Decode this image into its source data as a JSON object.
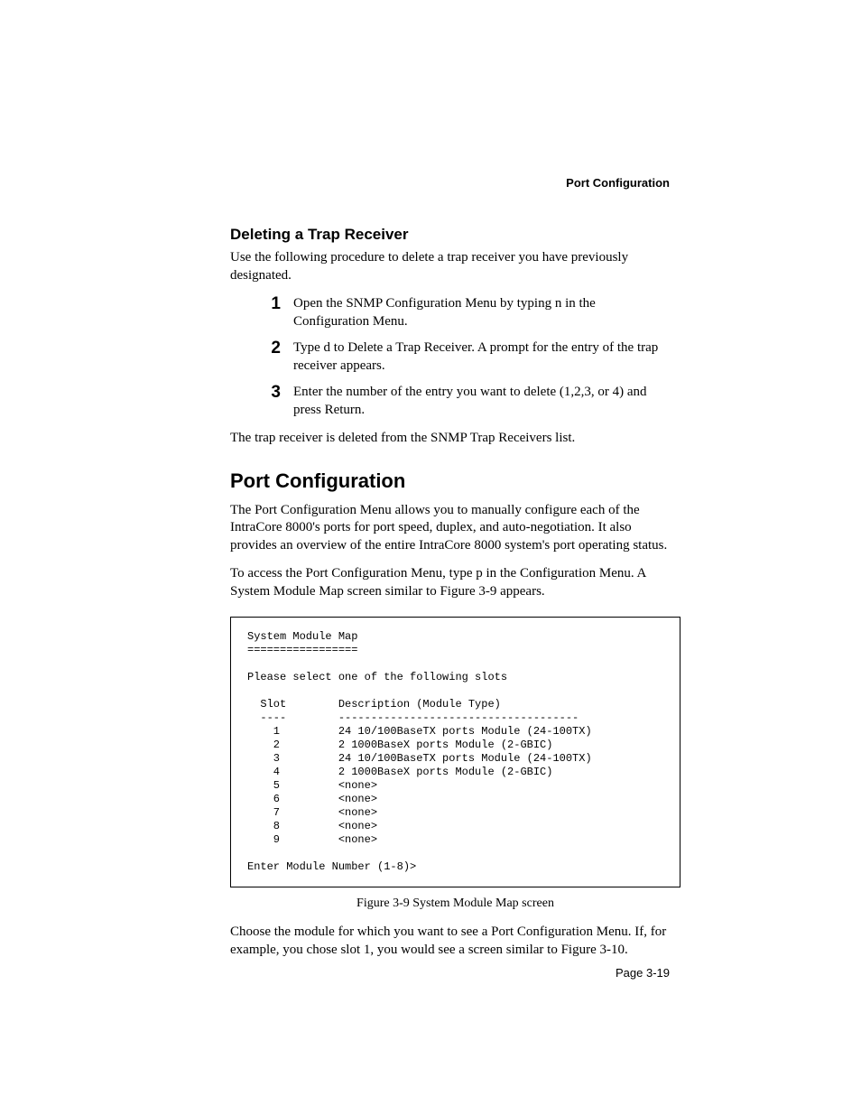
{
  "running_head": "Port Configuration",
  "section1": {
    "heading": "Deleting a Trap Receiver",
    "intro": "Use the following procedure to delete a trap receiver you have previously designated.",
    "steps": [
      {
        "n": "1",
        "text": "Open the SNMP Configuration Menu by typing n in the Configuration Menu."
      },
      {
        "n": "2",
        "text": "Type d to Delete a Trap Receiver. A prompt for the entry of the trap receiver appears."
      },
      {
        "n": "3",
        "text": "Enter the number of the entry you want to delete (1,2,3, or 4) and press Return."
      }
    ],
    "closing": "The trap receiver is deleted from the SNMP Trap Receivers list."
  },
  "section2": {
    "heading": "Port Configuration",
    "p1": "The Port Configuration Menu allows you to manually configure each of the IntraCore 8000's ports for port speed, duplex, and auto-negotiation. It also provides an overview of the entire IntraCore 8000 system's port operating status.",
    "p2": "To access the Port Configuration Menu, type p in the Configuration Menu. A System Module Map screen similar to Figure 3-9 appears.",
    "terminal": "System Module Map\n=================\n\nPlease select one of the following slots\n\n  Slot        Description (Module Type)\n  ----        -------------------------------------\n    1         24 10/100BaseTX ports Module (24-100TX)\n    2         2 1000BaseX ports Module (2-GBIC)\n    3         24 10/100BaseTX ports Module (24-100TX)\n    4         2 1000BaseX ports Module (2-GBIC)\n    5         <none>\n    6         <none>\n    7         <none>\n    8         <none>\n    9         <none>\n\nEnter Module Number (1-8)>",
    "fig_caption": "Figure 3-9   System Module Map screen",
    "p3": "Choose the module for which you want to see a Port Configuration Menu. If, for example, you chose slot 1, you would see a screen similar to Figure 3-10."
  },
  "page_number": "Page 3-19"
}
